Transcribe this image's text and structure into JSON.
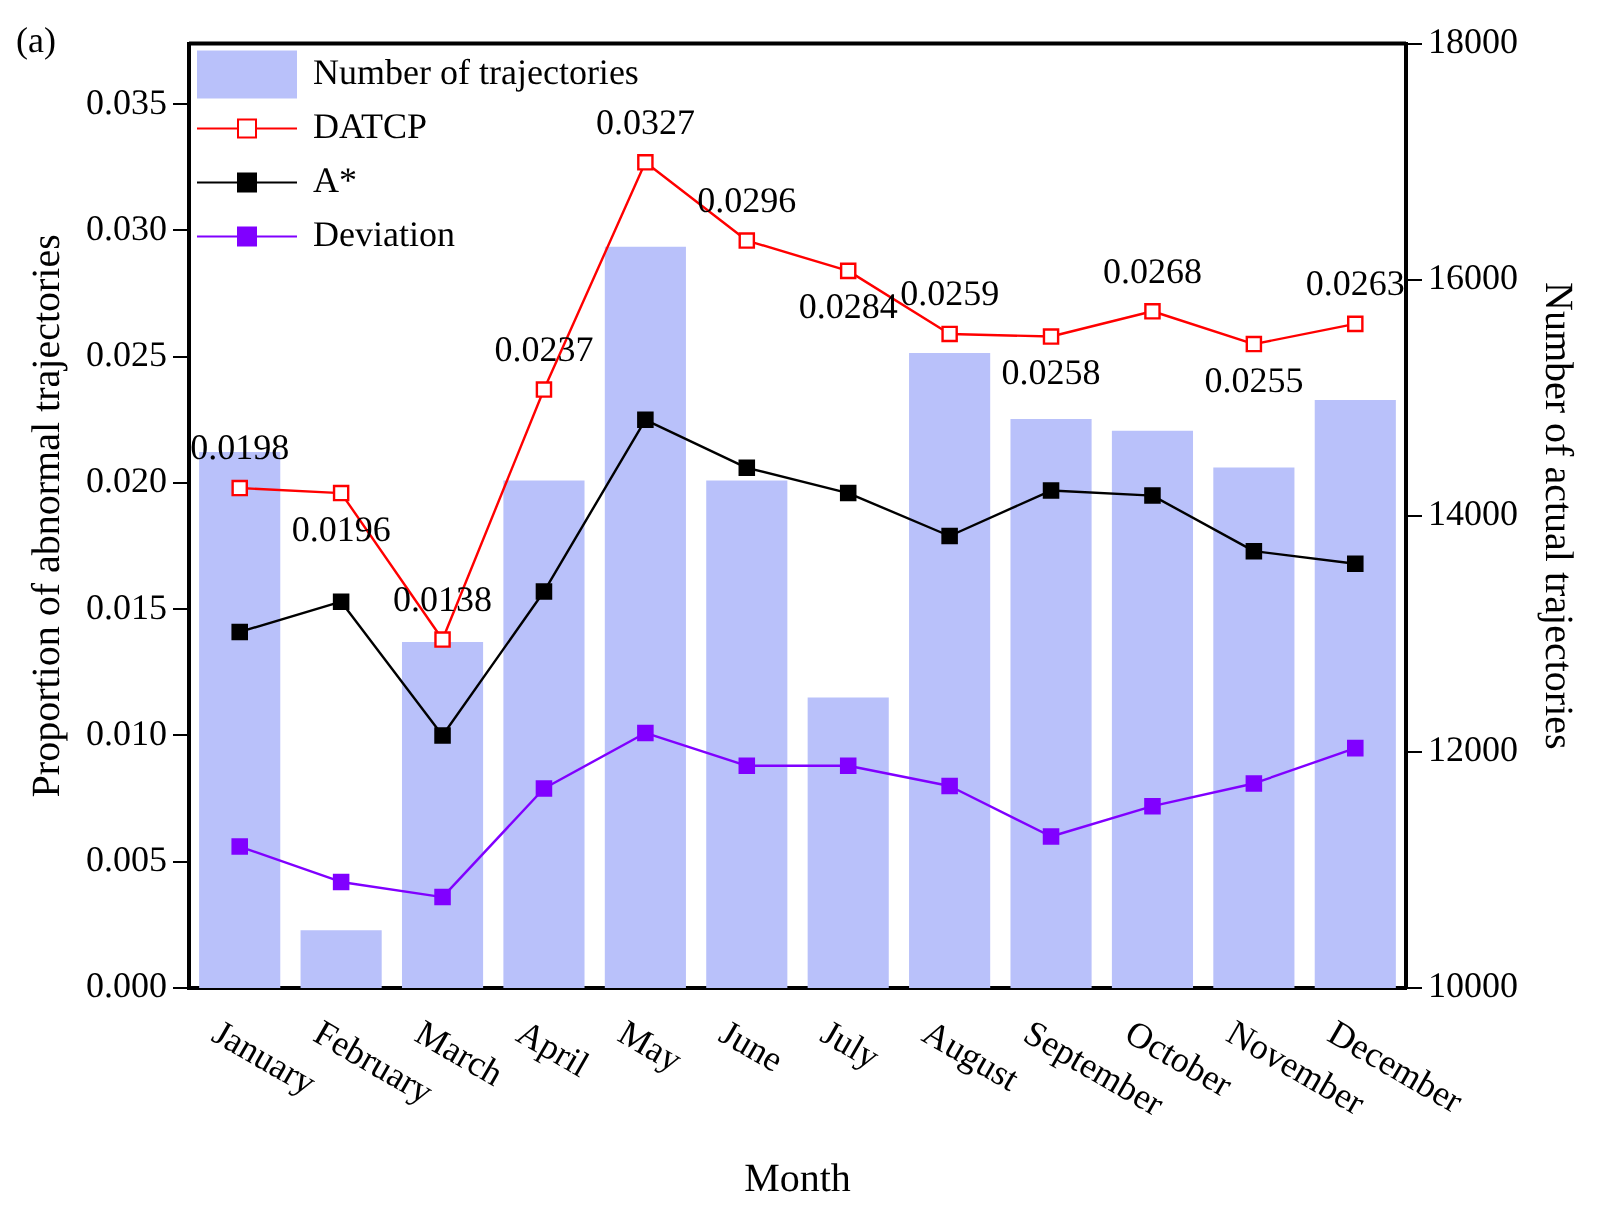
{
  "chart_data": {
    "type": "bar",
    "xlabel": "Month",
    "ylabel": "Proportion of abnormal trajectories",
    "y2label": "Number of actual trajectories",
    "annotations": [
      "(a)"
    ],
    "categories": [
      "January",
      "February",
      "March",
      "April",
      "May",
      "June",
      "July",
      "August",
      "September",
      "October",
      "November",
      "December"
    ],
    "series": [
      {
        "name": "Number of trajectories",
        "axis": "y2",
        "color": "#b9c1fa",
        "values": [
          14540,
          10490,
          12930,
          14300,
          16280,
          14300,
          12460,
          15380,
          14820,
          14720,
          14410,
          14980
        ]
      },
      {
        "name": "DATCP",
        "type": "line",
        "color": "#ff0000",
        "marker": "square",
        "values": [
          0.0198,
          0.0196,
          0.0138,
          0.0237,
          0.0327,
          0.0296,
          0.0284,
          0.0259,
          0.0258,
          0.0268,
          0.0255,
          0.0263
        ],
        "value_labels": [
          "0.0198",
          "0.0196",
          "0.0138",
          "0.0237",
          "0.0327",
          "0.0296",
          "0.0284",
          "0.0259",
          "0.0258",
          "0.0268",
          "0.0255",
          "0.0263"
        ]
      },
      {
        "name": "A*",
        "type": "line",
        "color": "#000000",
        "marker": "square",
        "values": [
          0.0141,
          0.0153,
          0.01,
          0.0157,
          0.0225,
          0.0206,
          0.0196,
          0.0179,
          0.0197,
          0.0195,
          0.0173,
          0.0168
        ]
      },
      {
        "name": "Deviation",
        "type": "line",
        "color": "#8000ff",
        "marker": "square",
        "values": [
          0.0056,
          0.0042,
          0.0036,
          0.0079,
          0.0101,
          0.0088,
          0.0088,
          0.008,
          0.006,
          0.0072,
          0.0081,
          0.0095
        ]
      }
    ],
    "ylim": [
      0,
      0.0374
    ],
    "yticks": [
      {
        "value": 0,
        "label": "0.000"
      },
      {
        "value": 0.005,
        "label": "0.005"
      },
      {
        "value": 0.01,
        "label": "0.010"
      },
      {
        "value": 0.015,
        "label": "0.015"
      },
      {
        "value": 0.02,
        "label": "0.020"
      },
      {
        "value": 0.025,
        "label": "0.025"
      },
      {
        "value": 0.03,
        "label": "0.030"
      },
      {
        "value": 0.035,
        "label": "0.035"
      }
    ],
    "y2lim": [
      10000,
      18000
    ],
    "y2ticks": [
      10000,
      12000,
      14000,
      16000,
      18000
    ],
    "legend": "top left",
    "grid": false,
    "line_style": "solid"
  }
}
